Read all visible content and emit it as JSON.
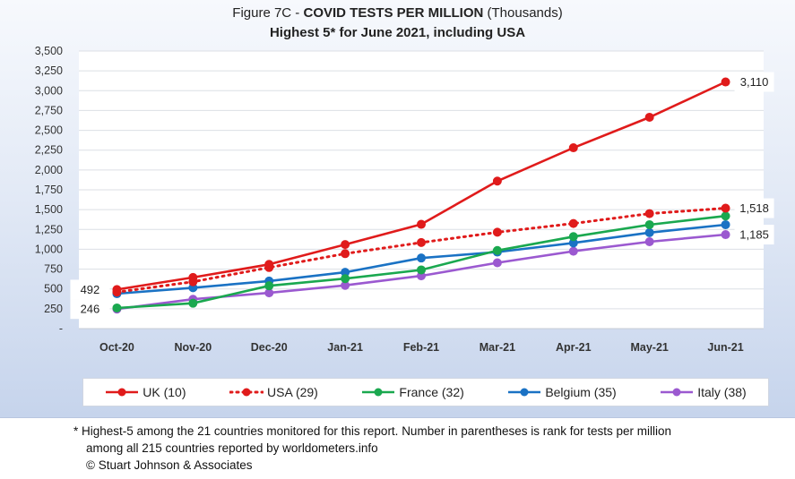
{
  "title": {
    "prefix": "Figure 7C - ",
    "main": "COVID TESTS PER MILLION",
    "suffix": " (Thousands)",
    "subtitle": "Highest 5* for June 2021, including USA"
  },
  "chart_data": {
    "type": "line",
    "title": "Figure 7C - COVID TESTS PER MILLION (Thousands)",
    "subtitle": "Highest 5* for June 2021, including USA",
    "categories": [
      "Oct-20",
      "Nov-20",
      "Dec-20",
      "Jan-21",
      "Feb-21",
      "Mar-21",
      "Apr-21",
      "May-21",
      "Jun-21"
    ],
    "y_ticks": [
      "-",
      "250",
      "500",
      "750",
      "1,000",
      "1,250",
      "1,500",
      "1,750",
      "2,000",
      "2,250",
      "2,500",
      "2,750",
      "3,000",
      "3,250",
      "3,500"
    ],
    "ylim": [
      0,
      3500
    ],
    "grid": true,
    "legend_position": "bottom",
    "series": [
      {
        "name": "UK (10)",
        "color": "#e01b1b",
        "style": "solid",
        "values": [
          492,
          645,
          810,
          1060,
          1315,
          1860,
          2280,
          2665,
          3110
        ]
      },
      {
        "name": "USA (29)",
        "color": "#e01b1b",
        "style": "dotted",
        "values": [
          460,
          590,
          770,
          945,
          1085,
          1215,
          1325,
          1450,
          1518
        ]
      },
      {
        "name": "France (32)",
        "color": "#1aa84f",
        "style": "solid",
        "values": [
          260,
          320,
          540,
          630,
          740,
          985,
          1160,
          1310,
          1420
        ]
      },
      {
        "name": "Belgium (35)",
        "color": "#1a72c4",
        "style": "solid",
        "values": [
          440,
          515,
          600,
          710,
          890,
          965,
          1080,
          1210,
          1310
        ]
      },
      {
        "name": "Italy (38)",
        "color": "#9b59d0",
        "style": "solid",
        "values": [
          246,
          370,
          450,
          545,
          665,
          830,
          975,
          1095,
          1185
        ]
      }
    ],
    "data_labels": [
      {
        "text": "492",
        "series": 0,
        "index": 0,
        "side": "left"
      },
      {
        "text": "246",
        "series": 4,
        "index": 0,
        "side": "left"
      },
      {
        "text": "3,110",
        "series": 0,
        "index": 8,
        "side": "right"
      },
      {
        "text": "1,518",
        "series": 1,
        "index": 8,
        "side": "right"
      },
      {
        "text": "1,185",
        "series": 4,
        "index": 8,
        "side": "right"
      }
    ]
  },
  "footnote": {
    "line1": "* Highest-5 among the 21 countries monitored for this report. Number in parentheses is rank for tests per million",
    "line2": "among all 215 countries reported by worldometers.info",
    "line3": "© Stuart Johnson & Associates"
  }
}
